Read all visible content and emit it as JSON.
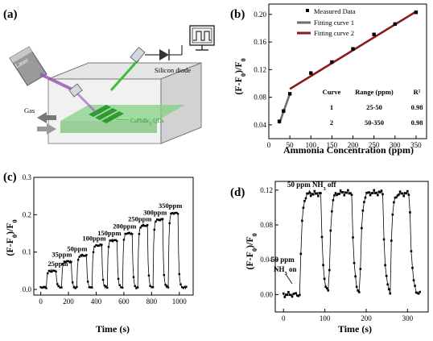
{
  "panels": {
    "a": {
      "label": "(a)",
      "laser": "Laser",
      "gas": "Gas",
      "diode": "Silicon diode",
      "qds_prefix": "CsPbBr",
      "qds_sub": "3",
      "qds_suffix": " QDs"
    },
    "b": {
      "label": "(b)"
    },
    "c": {
      "label": "(c)"
    },
    "d": {
      "label": "(d)"
    }
  },
  "colors": {
    "measured": "#000000",
    "fit1": "#6e6e6e",
    "fit2": "#8b1a1a",
    "laser_beam": "#9b59b6",
    "qd_green": "#4cc84c"
  },
  "chart_data": [
    {
      "id": "b",
      "type": "scatter",
      "xlabel": "Ammonia Concentration (ppm)",
      "ylabel_parts": [
        "(F-F",
        "0",
        ")/F",
        "0"
      ],
      "xlim": [
        0,
        375
      ],
      "ylim": [
        0.02,
        0.215
      ],
      "xticks": [
        0,
        50,
        100,
        150,
        200,
        250,
        300,
        350
      ],
      "yticks": [
        0.04,
        0.08,
        0.12,
        0.16,
        0.2
      ],
      "ytick_labels": [
        "0.04",
        "0.08",
        "0.12",
        "0.16",
        "0.20"
      ],
      "series": [
        {
          "name": "Measured Data",
          "x": [
            25,
            35,
            50,
            100,
            150,
            200,
            250,
            300,
            350
          ],
          "y": [
            0.045,
            0.06,
            0.085,
            0.115,
            0.131,
            0.15,
            0.171,
            0.186,
            0.203
          ]
        }
      ],
      "fits": [
        {
          "name": "Fitting curve 1",
          "x": [
            25,
            50
          ],
          "y": [
            0.042,
            0.085
          ]
        },
        {
          "name": "Fitting curve 2",
          "x": [
            50,
            350
          ],
          "y": [
            0.092,
            0.204
          ]
        }
      ],
      "table": {
        "headers": [
          "Curve",
          "Range (ppm)",
          "R²"
        ],
        "rows": [
          [
            "1",
            "25-50",
            "0.98"
          ],
          [
            "2",
            "50-350",
            "0.98"
          ]
        ]
      },
      "legend_position": "top-left"
    },
    {
      "id": "c",
      "type": "line",
      "xlabel": "Time (s)",
      "ylabel_parts": [
        "(F-F",
        "0",
        ")/F",
        "0"
      ],
      "xlim": [
        -50,
        1100
      ],
      "ylim": [
        -0.015,
        0.3
      ],
      "xticks": [
        0,
        200,
        400,
        600,
        800,
        1000
      ],
      "yticks": [
        0.0,
        0.1,
        0.2,
        0.3
      ],
      "ytick_labels": [
        "0.0",
        "0.1",
        "0.2",
        "0.3"
      ],
      "pulses": [
        {
          "on": 40,
          "off": 110,
          "peak": 0.05,
          "label": "25ppm"
        },
        {
          "on": 150,
          "off": 220,
          "peak": 0.075,
          "label": "35ppm"
        },
        {
          "on": 260,
          "off": 330,
          "peak": 0.09,
          "label": "50ppm"
        },
        {
          "on": 370,
          "off": 440,
          "peak": 0.118,
          "label": "100ppm"
        },
        {
          "on": 480,
          "off": 550,
          "peak": 0.132,
          "label": "150ppm"
        },
        {
          "on": 590,
          "off": 660,
          "peak": 0.15,
          "label": "200ppm"
        },
        {
          "on": 700,
          "off": 770,
          "peak": 0.17,
          "label": "250ppm"
        },
        {
          "on": 810,
          "off": 880,
          "peak": 0.187,
          "label": "300ppm"
        },
        {
          "on": 920,
          "off": 990,
          "peak": 0.205,
          "label": "350ppm"
        }
      ],
      "baseline": 0.005,
      "t_end": 1050
    },
    {
      "id": "d",
      "type": "line",
      "xlabel": "Time (s)",
      "ylabel_parts": [
        "(F-F",
        "0",
        ")/F",
        "0"
      ],
      "xlim": [
        -20,
        350
      ],
      "ylim": [
        -0.02,
        0.13
      ],
      "xticks": [
        0,
        100,
        200,
        300
      ],
      "yticks": [
        0.0,
        0.04,
        0.08,
        0.12
      ],
      "ytick_labels": [
        "0.00",
        "0.04",
        "0.08",
        "0.12"
      ],
      "pulses": [
        {
          "on": 40,
          "off": 90,
          "peak": 0.116
        },
        {
          "on": 110,
          "off": 165,
          "peak": 0.117
        },
        {
          "on": 185,
          "off": 240,
          "peak": 0.117
        },
        {
          "on": 258,
          "off": 305,
          "peak": 0.116
        }
      ],
      "baseline": 0.0,
      "t_start": 0,
      "t_end": 330,
      "annotations": {
        "off_prefix": "50 ppm NH",
        "off_sub": "3",
        "off_suffix": " off",
        "on_line1": "50 ppm",
        "on_prefix": "NH",
        "on_sub": "3",
        "on_suffix": " on"
      }
    }
  ]
}
